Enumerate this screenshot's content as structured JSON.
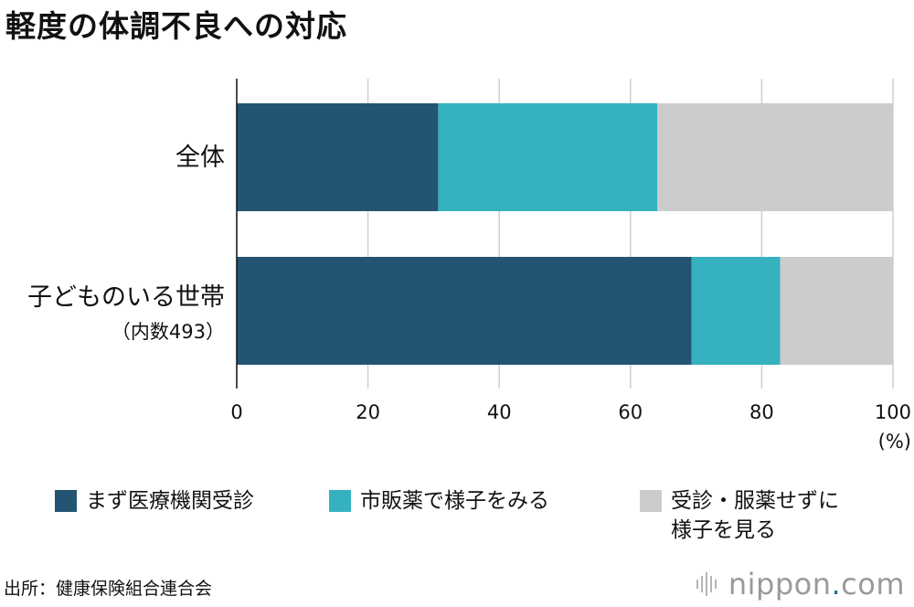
{
  "title": "軽度の体調不良への対応",
  "chart_data": {
    "type": "bar",
    "orientation": "horizontal",
    "stacked": true,
    "categories": [
      "全体",
      "子どものいる世帯"
    ],
    "category_notes": [
      "",
      "（内数493）"
    ],
    "series": [
      {
        "name": "まず医療機関受診",
        "values": [
          30.7,
          69.3
        ],
        "color": "#235573"
      },
      {
        "name": "市販薬で様子をみる",
        "values": [
          33.4,
          13.5
        ],
        "color": "#35b1c0"
      },
      {
        "name": "受診・服薬せずに様子を見る",
        "values": [
          35.9,
          17.2
        ],
        "color": "#cccccc"
      }
    ],
    "xlim": [
      0,
      100
    ],
    "xticks": [
      "0",
      "20",
      "40",
      "60",
      "80",
      "100"
    ],
    "xunit": "(%)",
    "grid": true,
    "legend_position": "bottom"
  },
  "legend": {
    "items": [
      {
        "lines": [
          "まず医療機関受診"
        ],
        "color": "#235573"
      },
      {
        "lines": [
          "市販薬で様子をみる"
        ],
        "color": "#35b1c0"
      },
      {
        "lines": [
          "受診・服薬せずに",
          "様子を見る"
        ],
        "color": "#cccccc"
      }
    ]
  },
  "source": "出所：健康保険組合連合会",
  "logo": {
    "name": "nippon",
    "dot": ".",
    "suffix": "com",
    "icon": "nippon-logo-icon"
  }
}
